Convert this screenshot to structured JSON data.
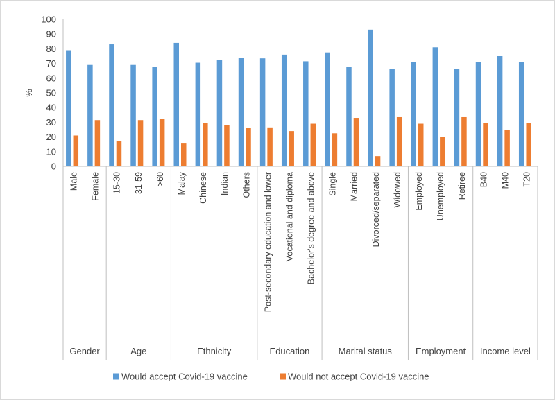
{
  "chart_data": {
    "type": "bar",
    "ylabel": "%",
    "ylim": [
      0,
      100
    ],
    "yticks": [
      0,
      10,
      20,
      30,
      40,
      50,
      60,
      70,
      80,
      90,
      100
    ],
    "grid": false,
    "legend_position": "bottom",
    "categories": [
      "Male",
      "Female",
      "15-30",
      "31-59",
      ">60",
      "Malay",
      "Chinese",
      "Indian",
      "Others",
      "Post-secondary education and lower",
      "Vocational and diploma",
      "Bachelor's degree and above",
      "Single",
      "Married",
      "Divorced/separated",
      "Widowed",
      "Employed",
      "Unemployed",
      "Retiree",
      "B40",
      "M40",
      "T20"
    ],
    "groups": [
      {
        "label": "Gender",
        "size": 2
      },
      {
        "label": "Age",
        "size": 3
      },
      {
        "label": "Ethnicity",
        "size": 4
      },
      {
        "label": "Education",
        "size": 3
      },
      {
        "label": "Marital status",
        "size": 4
      },
      {
        "label": "Employment",
        "size": 3
      },
      {
        "label": "Income level",
        "size": 3
      }
    ],
    "series": [
      {
        "name": "Would accept Covid-19 vaccine",
        "color": "#5B9BD5",
        "values": [
          79,
          69,
          83,
          69,
          67.5,
          84,
          70.5,
          72.5,
          74,
          73.5,
          76,
          71.5,
          77.5,
          67.5,
          93,
          66.5,
          71,
          81,
          66.5,
          71,
          75,
          71
        ]
      },
      {
        "name": "Would not accept Covid-19 vaccine",
        "color": "#ED7D31",
        "values": [
          21,
          31.5,
          17,
          31.5,
          32.5,
          16,
          29.5,
          28,
          26,
          26.5,
          24,
          29,
          22.5,
          33,
          7,
          33.5,
          29,
          20,
          33.5,
          29.5,
          25,
          29.5
        ]
      }
    ]
  }
}
